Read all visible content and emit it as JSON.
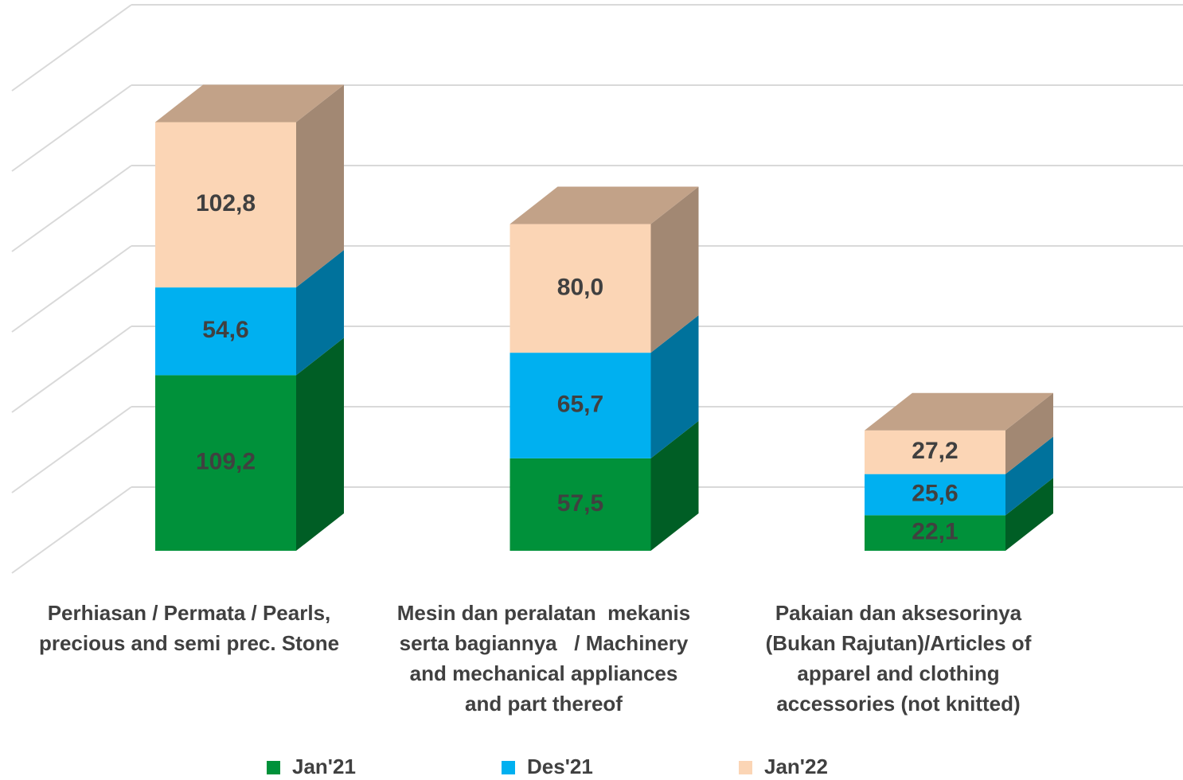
{
  "chart_data": {
    "type": "bar3d_stacked",
    "categories": [
      "Perhiasan / Permata / Pearls,\nprecious and semi prec. Stone",
      "Mesin dan peralatan  mekanis\nserta bagiannya   / Machinery\nand mechanical appliances\nand part thereof",
      "Pakaian dan aksesorinya\n(Bukan Rajutan)/Articles of\napparel and clothing\naccessories (not knitted)"
    ],
    "series": [
      {
        "name": "Jan'21",
        "color": "#00913a",
        "side_color": "#005e25",
        "top_color": "#00913a",
        "values": [
          109.2,
          57.5,
          22.1
        ],
        "value_labels": [
          "109,2",
          "57,5",
          "22,1"
        ]
      },
      {
        "name": "Des'21",
        "color": "#00b0f0",
        "side_color": "#00729c",
        "top_color": "#00b0f0",
        "values": [
          54.6,
          65.7,
          25.6
        ],
        "value_labels": [
          "54,6",
          "65,7",
          "25,6"
        ]
      },
      {
        "name": "Jan'22",
        "color": "#fbd5b5",
        "side_color": "#a28873",
        "top_color": "#c2a288",
        "values": [
          102.8,
          80.0,
          27.2
        ],
        "value_labels": [
          "102,8",
          "80,0",
          "27,2"
        ]
      }
    ],
    "ylim": [
      0,
      300
    ],
    "yticks": [
      0,
      50,
      100,
      150,
      200,
      250,
      300
    ],
    "grid": true,
    "legend": "bottom"
  }
}
